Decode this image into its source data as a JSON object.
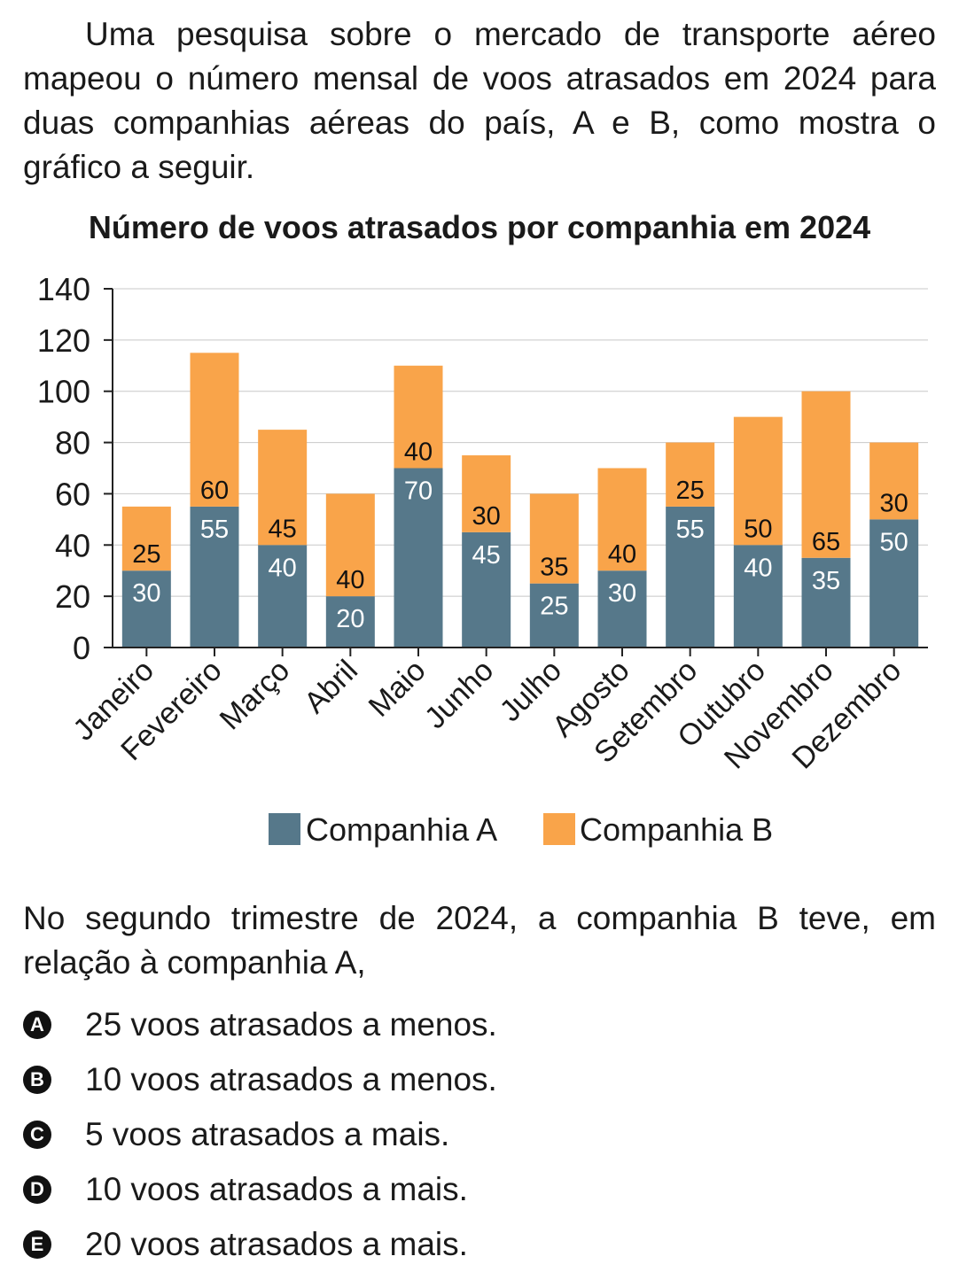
{
  "intro_text": "Uma pesquisa sobre o mercado de transporte aéreo mapeou o número mensal de voos atrasados em 2024 para duas companhias aéreas do país, A e B, como mostra o gráfico a seguir.",
  "chart_data": {
    "type": "bar",
    "stacked": true,
    "title": "Número de voos atrasados por companhia em 2024",
    "xlabel": "",
    "ylabel": "",
    "ylim": [
      0,
      140
    ],
    "yticks": [
      0,
      20,
      40,
      60,
      80,
      100,
      120,
      140
    ],
    "grid": true,
    "legend_position": "bottom",
    "categories": [
      "Janeiro",
      "Fevereiro",
      "Março",
      "Abril",
      "Maio",
      "Junho",
      "Julho",
      "Agosto",
      "Setembro",
      "Outubro",
      "Novembro",
      "Dezembro"
    ],
    "series": [
      {
        "name": "Companhia A",
        "color": "#56788a",
        "label_color": "#ffffff",
        "values": [
          30,
          55,
          40,
          20,
          70,
          45,
          25,
          30,
          55,
          40,
          35,
          50
        ]
      },
      {
        "name": "Companhia B",
        "color": "#f9a44a",
        "label_color": "#111111",
        "values": [
          25,
          60,
          45,
          40,
          40,
          30,
          35,
          40,
          25,
          50,
          65,
          30
        ]
      }
    ]
  },
  "question_text": "No segundo trimestre de 2024, a companhia B teve, em relação à companhia A,",
  "options": [
    {
      "letter": "A",
      "text": "25 voos atrasados a menos."
    },
    {
      "letter": "B",
      "text": "10 voos atrasados a menos."
    },
    {
      "letter": "C",
      "text": "5 voos atrasados a mais."
    },
    {
      "letter": "D",
      "text": "10 voos atrasados a mais."
    },
    {
      "letter": "E",
      "text": "20 voos atrasados a mais."
    }
  ]
}
